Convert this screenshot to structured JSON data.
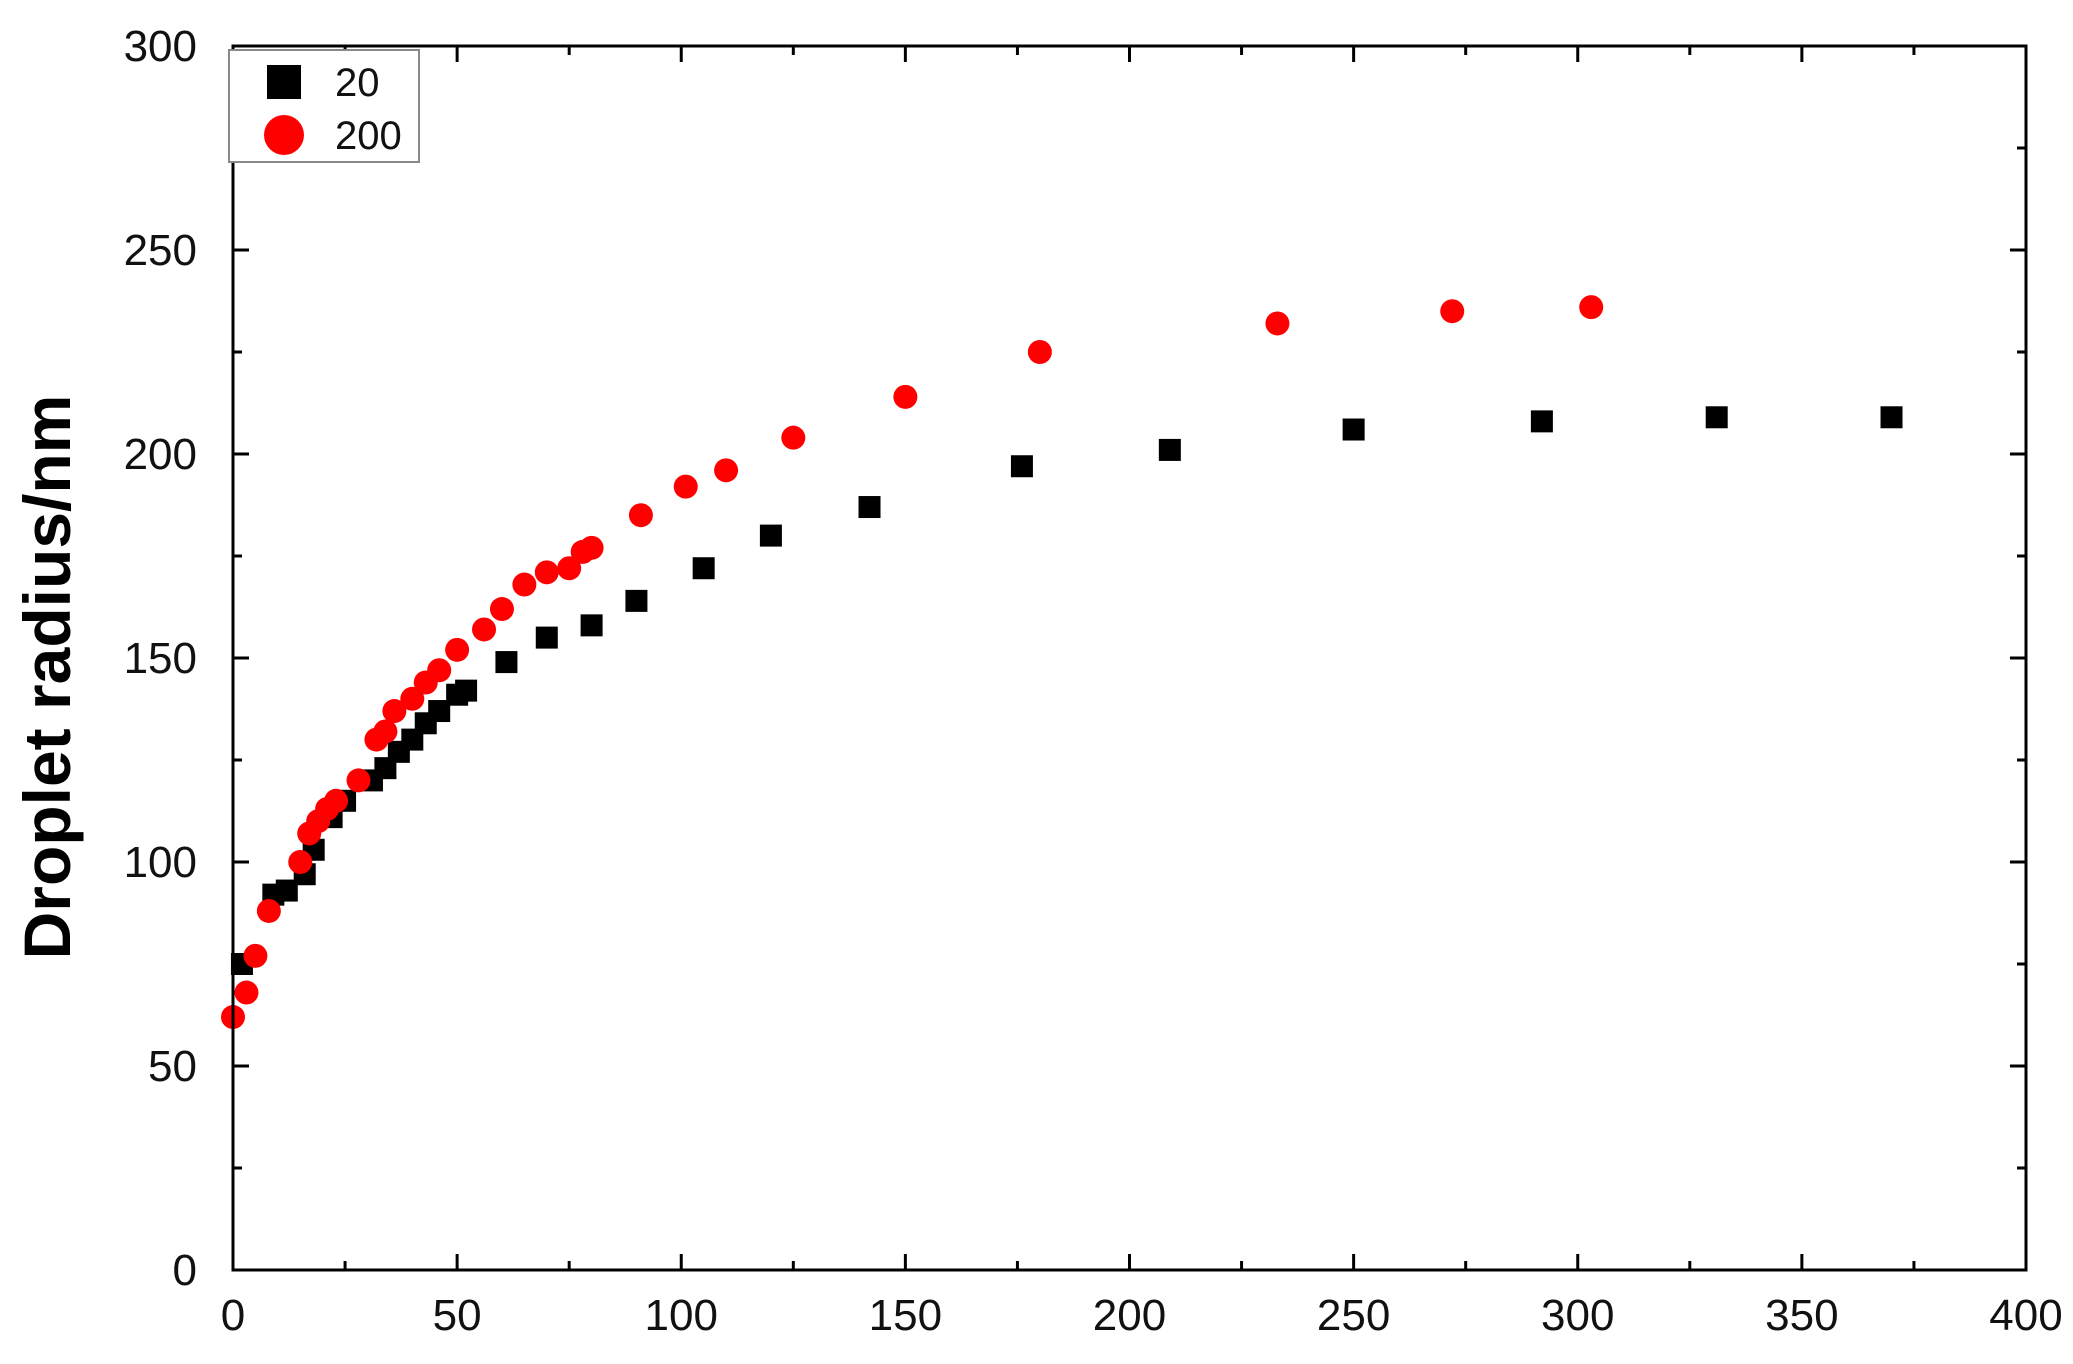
{
  "chart_data": {
    "type": "scatter",
    "title": "",
    "xlabel": "",
    "ylabel": "Droplet radius/nm",
    "xlim": [
      0,
      400
    ],
    "ylim": [
      0,
      300
    ],
    "x_ticks": [
      0,
      50,
      100,
      150,
      200,
      250,
      300,
      350,
      400
    ],
    "y_ticks": [
      0,
      50,
      100,
      150,
      200,
      250,
      300
    ],
    "grid": false,
    "legend_position": "top-left",
    "series": [
      {
        "name": "20",
        "marker": "square",
        "color": "#000000",
        "points": [
          [
            2,
            75
          ],
          [
            9,
            92
          ],
          [
            12,
            93
          ],
          [
            16,
            97
          ],
          [
            18,
            103
          ],
          [
            22,
            111
          ],
          [
            25,
            115
          ],
          [
            31,
            120
          ],
          [
            34,
            123
          ],
          [
            37,
            127
          ],
          [
            40,
            130
          ],
          [
            43,
            134
          ],
          [
            46,
            137
          ],
          [
            50,
            141
          ],
          [
            52,
            142
          ],
          [
            61,
            149
          ],
          [
            70,
            155
          ],
          [
            80,
            158
          ],
          [
            90,
            164
          ],
          [
            105,
            172
          ],
          [
            120,
            180
          ],
          [
            142,
            187
          ],
          [
            176,
            197
          ],
          [
            209,
            201
          ],
          [
            250,
            206
          ],
          [
            292,
            208
          ],
          [
            331,
            209
          ],
          [
            370,
            209
          ]
        ]
      },
      {
        "name": "200",
        "marker": "circle",
        "color": "#ff0000",
        "points": [
          [
            0,
            62
          ],
          [
            3,
            68
          ],
          [
            5,
            77
          ],
          [
            8,
            88
          ],
          [
            15,
            100
          ],
          [
            17,
            107
          ],
          [
            19,
            110
          ],
          [
            21,
            113
          ],
          [
            23,
            115
          ],
          [
            28,
            120
          ],
          [
            32,
            130
          ],
          [
            34,
            132
          ],
          [
            36,
            137
          ],
          [
            40,
            140
          ],
          [
            43,
            144
          ],
          [
            46,
            147
          ],
          [
            50,
            152
          ],
          [
            56,
            157
          ],
          [
            60,
            162
          ],
          [
            65,
            168
          ],
          [
            70,
            171
          ],
          [
            75,
            172
          ],
          [
            78,
            176
          ],
          [
            80,
            177
          ],
          [
            91,
            185
          ],
          [
            101,
            192
          ],
          [
            110,
            196
          ],
          [
            125,
            204
          ],
          [
            150,
            214
          ],
          [
            180,
            225
          ],
          [
            233,
            232
          ],
          [
            272,
            235
          ],
          [
            303,
            236
          ]
        ]
      }
    ]
  },
  "legend": {
    "items": [
      {
        "label": "20",
        "color": "#000000",
        "marker": "square"
      },
      {
        "label": "200",
        "color": "#ff0000",
        "marker": "circle"
      }
    ]
  }
}
